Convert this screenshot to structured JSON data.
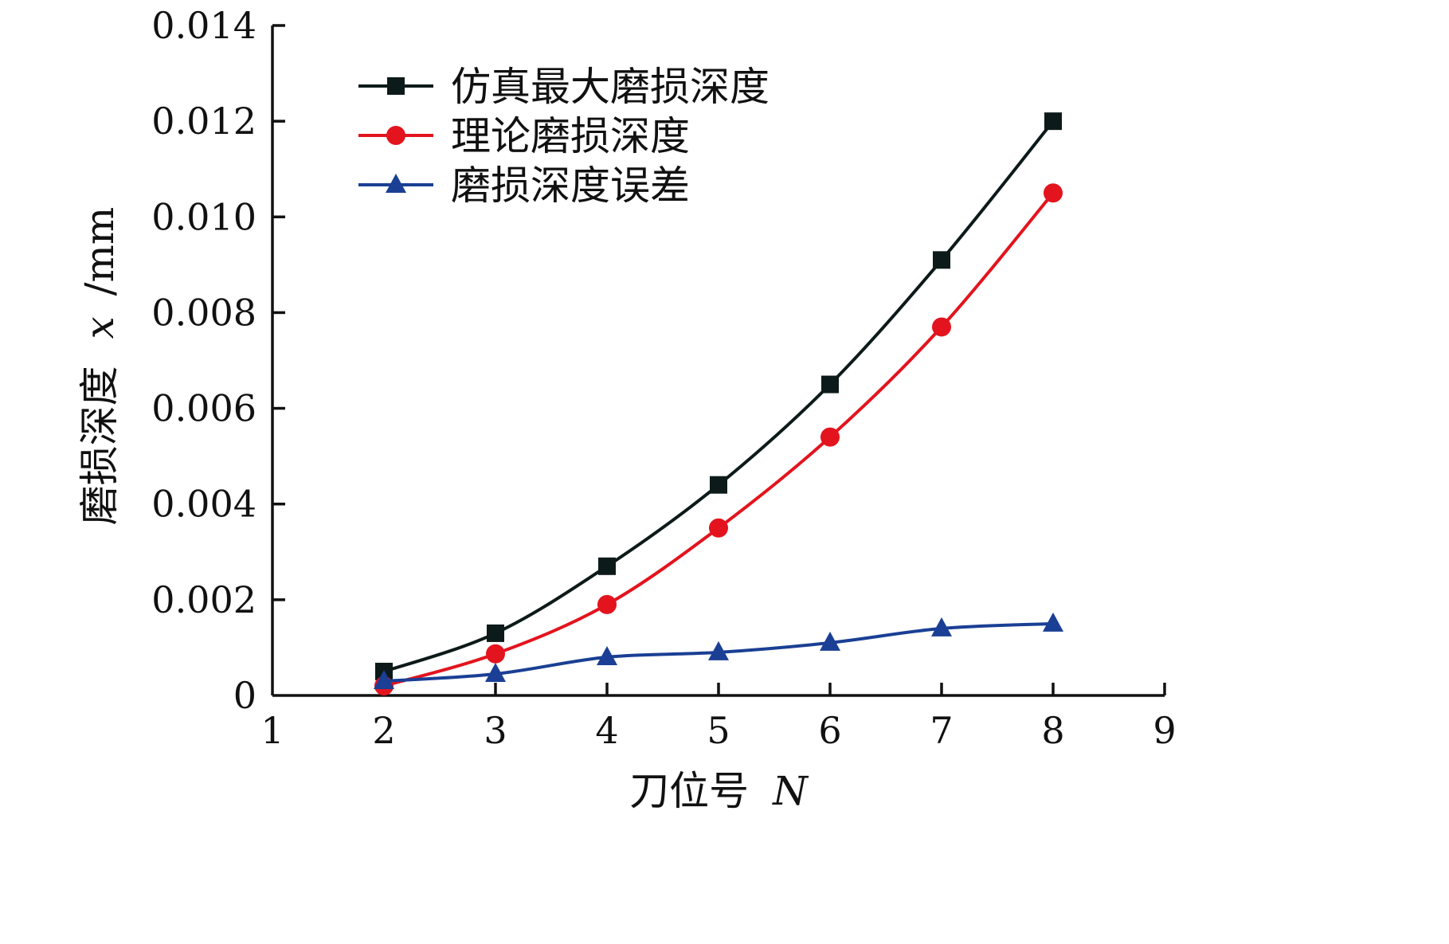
{
  "chart_data": {
    "type": "line",
    "title": "",
    "xlabel": "刀位号",
    "xlabel_var": "N",
    "ylabel": "磨损深度",
    "ylabel_var": "x",
    "ylabel_unit": "/mm",
    "xlim": [
      1,
      9
    ],
    "ylim": [
      0,
      0.014
    ],
    "x_ticks": [
      "1",
      "2",
      "3",
      "4",
      "5",
      "6",
      "7",
      "8",
      "9"
    ],
    "y_ticks": [
      "0",
      "0.002",
      "0.004",
      "0.006",
      "0.008",
      "0.010",
      "0.012",
      "0.014"
    ],
    "x_tick_values": [
      1,
      2,
      3,
      4,
      5,
      6,
      7,
      8,
      9
    ],
    "y_tick_values": [
      0,
      0.002,
      0.004,
      0.006,
      0.008,
      0.01,
      0.012,
      0.014
    ],
    "legend_position": "top-left",
    "grid": false,
    "x": [
      2,
      3,
      4,
      5,
      6,
      7,
      8
    ],
    "series": [
      {
        "name": "仿真最大磨损深度",
        "color": "#0d1a1a",
        "marker": "square",
        "values": [
          0.0005,
          0.0013,
          0.0027,
          0.0044,
          0.0065,
          0.0091,
          0.012
        ]
      },
      {
        "name": "理论磨损深度",
        "color": "#e3141e",
        "marker": "circle",
        "values": [
          0.0002,
          0.00087,
          0.0019,
          0.0035,
          0.0054,
          0.0077,
          0.0105
        ]
      },
      {
        "name": "磨损深度误差",
        "color": "#1a3f94",
        "marker": "triangle",
        "values": [
          0.0003,
          0.00045,
          0.0008,
          0.0009,
          0.0011,
          0.0014,
          0.0015
        ]
      }
    ]
  }
}
